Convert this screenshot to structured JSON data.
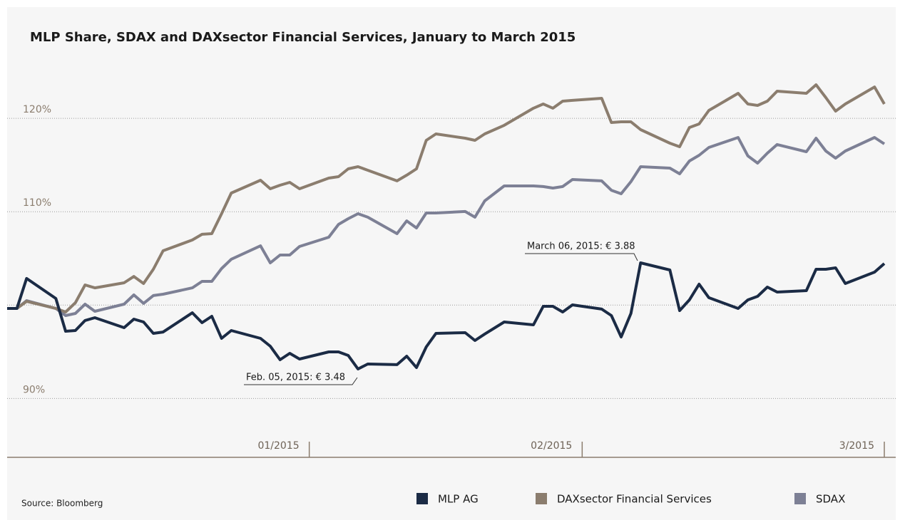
{
  "chart_data": {
    "type": "line",
    "title": "MLP Share, SDAX and DAXsector Financial Services, January to March 2015",
    "source": "Source: Bloomberg",
    "x": [
      0,
      1,
      2,
      5,
      6,
      7,
      8,
      9,
      12,
      13,
      14,
      15,
      16,
      19,
      20,
      21,
      22,
      23,
      26,
      27,
      28,
      29,
      30,
      33,
      34,
      35,
      36,
      37,
      40,
      41,
      42,
      43,
      44,
      47,
      48,
      49,
      51,
      54,
      55,
      56,
      57,
      58,
      61,
      62,
      63,
      64,
      65,
      68,
      69,
      70,
      71,
      72,
      75,
      76,
      77,
      78,
      79,
      82,
      83,
      84,
      85,
      86,
      89,
      90
    ],
    "xlim": [
      0,
      90
    ],
    "xticks": [
      {
        "value": 31,
        "label": "01/2015"
      },
      {
        "value": 59,
        "label": "02/2015"
      },
      {
        "value": 90,
        "label": "3/2015"
      }
    ],
    "ylim": [
      83.7,
      125.5
    ],
    "yticks": [
      {
        "value": 90,
        "label": "90%"
      },
      {
        "value": 110,
        "label": "110%"
      },
      {
        "value": 120,
        "label": "120%"
      }
    ],
    "gridlines": [
      90,
      100,
      110,
      120
    ],
    "series": [
      {
        "name": "MLP AG",
        "color": "#1b2b45",
        "values": [
          99.64,
          99.64,
          102.85,
          100.71,
          97.2,
          97.28,
          98.35,
          98.65,
          97.58,
          98.5,
          98.19,
          96.97,
          97.12,
          99.18,
          98.12,
          98.8,
          96.44,
          97.28,
          96.44,
          95.6,
          94.15,
          94.84,
          94.23,
          94.99,
          94.99,
          94.61,
          93.16,
          93.69,
          93.62,
          94.53,
          93.31,
          95.52,
          96.97,
          97.05,
          96.21,
          96.9,
          98.19,
          97.89,
          99.87,
          99.87,
          99.26,
          100.02,
          99.57,
          98.88,
          96.59,
          99.11,
          104.52,
          103.76,
          99.41,
          100.56,
          102.24,
          100.79,
          99.64,
          100.56,
          100.94,
          101.93,
          101.4,
          101.55,
          103.84,
          103.84,
          103.99,
          102.31,
          103.53,
          104.45
        ]
      },
      {
        "name": "DAXsector Financial Services",
        "color": "#8b7d6e",
        "values": [
          99.64,
          99.64,
          100.4,
          99.64,
          99.26,
          100.25,
          102.16,
          101.85,
          102.39,
          103.07,
          102.31,
          103.84,
          105.82,
          106.97,
          107.58,
          107.65,
          109.79,
          112.0,
          113.37,
          112.46,
          112.84,
          113.14,
          112.46,
          113.6,
          113.75,
          114.59,
          114.82,
          114.44,
          113.3,
          113.91,
          114.59,
          117.64,
          118.33,
          117.87,
          117.64,
          118.33,
          119.25,
          121.08,
          121.53,
          121.08,
          121.84,
          121.92,
          122.14,
          119.55,
          119.63,
          119.63,
          118.79,
          117.34,
          116.96,
          119.02,
          119.4,
          120.85,
          122.68,
          121.53,
          121.38,
          121.84,
          122.91,
          122.68,
          123.59,
          122.22,
          120.77,
          121.53,
          123.36,
          121.53
        ]
      },
      {
        "name": "SDAX",
        "color": "#7d8095",
        "values": [
          99.64,
          99.64,
          100.48,
          99.64,
          98.88,
          99.11,
          100.1,
          99.34,
          100.1,
          101.09,
          100.18,
          101.02,
          101.17,
          101.85,
          102.54,
          102.54,
          103.91,
          104.91,
          106.35,
          104.52,
          105.36,
          105.36,
          106.28,
          107.27,
          108.64,
          109.25,
          109.79,
          109.41,
          107.65,
          109.02,
          108.26,
          109.86,
          109.86,
          110.02,
          109.41,
          111.16,
          112.76,
          112.76,
          112.69,
          112.53,
          112.69,
          113.45,
          113.3,
          112.3,
          111.92,
          113.22,
          114.82,
          114.67,
          114.06,
          115.43,
          116.04,
          116.88,
          117.95,
          115.97,
          115.2,
          116.27,
          117.19,
          116.42,
          117.87,
          116.5,
          115.74,
          116.5,
          117.95,
          117.26
        ]
      }
    ],
    "annotations": [
      "Feb. 05, 2015: € 3.48",
      "March 06, 2015: € 3.88"
    ],
    "legend": "bottom"
  }
}
